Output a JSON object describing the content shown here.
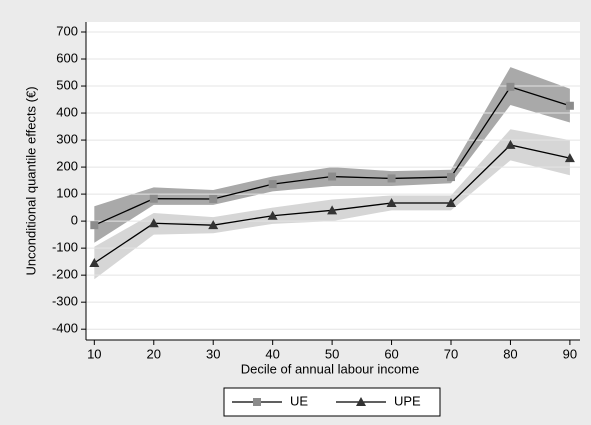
{
  "chart_data": {
    "type": "line",
    "x": [
      10,
      20,
      30,
      40,
      50,
      60,
      70,
      80,
      90
    ],
    "xlabel": "Decile of annual labour income",
    "ylabel": "Unconditional quantile effects (€)",
    "xlim": [
      8.6,
      91.7
    ],
    "xticks": [
      10,
      20,
      30,
      40,
      50,
      60,
      70,
      80,
      90
    ],
    "ylim": [
      -440,
      737
    ],
    "yticks": [
      -400,
      -300,
      -200,
      -100,
      0,
      100,
      200,
      300,
      400,
      500,
      600,
      700
    ],
    "grid": true,
    "legend": "bottom",
    "series": [
      {
        "name": "UE",
        "color": "#000000",
        "marker": "square",
        "marker_color": "#8c8c8c",
        "band_color": "#a9a9a9",
        "values": [
          -15,
          83,
          82,
          137,
          165,
          158,
          163,
          497,
          427
        ],
        "ci_lower": [
          -80,
          60,
          60,
          110,
          130,
          130,
          140,
          430,
          365
        ],
        "ci_upper": [
          55,
          125,
          115,
          165,
          200,
          185,
          190,
          570,
          490
        ]
      },
      {
        "name": "UPE",
        "color": "#000000",
        "marker": "triangle",
        "marker_color": "#333333",
        "band_color": "#d6d6d6",
        "values": [
          -155,
          -8,
          -15,
          20,
          40,
          67,
          67,
          282,
          233
        ],
        "ci_lower": [
          -215,
          -50,
          -45,
          -10,
          0,
          40,
          40,
          225,
          170
        ],
        "ci_upper": [
          -95,
          30,
          15,
          50,
          80,
          95,
          95,
          340,
          300
        ]
      }
    ]
  }
}
